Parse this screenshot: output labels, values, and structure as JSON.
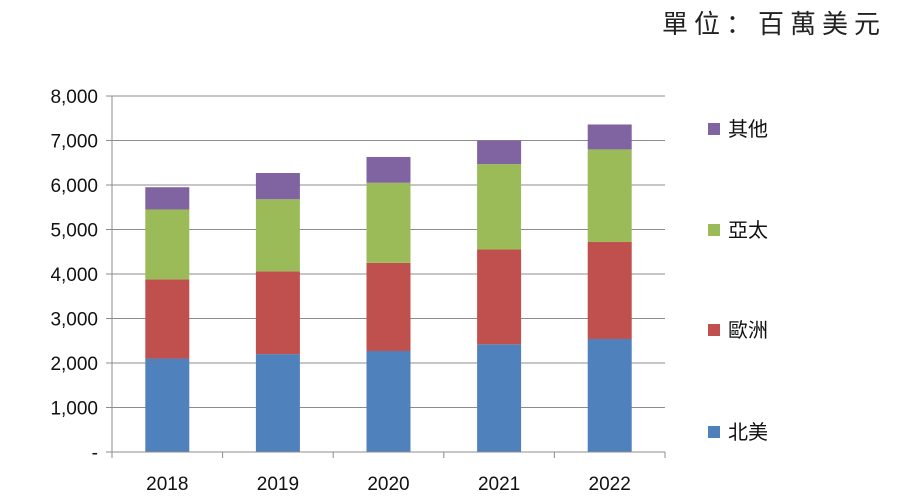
{
  "unit_label": "單位：百萬美元",
  "chart_data": {
    "type": "bar",
    "stacked": true,
    "title": "",
    "xlabel": "",
    "ylabel": "",
    "categories": [
      "2018",
      "2019",
      "2020",
      "2021",
      "2022"
    ],
    "ylim": [
      0,
      8000
    ],
    "yticks": [
      0,
      1000,
      2000,
      3000,
      4000,
      5000,
      6000,
      7000,
      8000
    ],
    "ytick_labels": [
      "-",
      "1,000",
      "2,000",
      "3,000",
      "4,000",
      "5,000",
      "6,000",
      "7,000",
      "8,000"
    ],
    "grid": true,
    "legend_position": "right",
    "series": [
      {
        "name": "北美",
        "color": "#4f81bd",
        "values": [
          2100,
          2200,
          2270,
          2420,
          2540
        ]
      },
      {
        "name": "歐洲",
        "color": "#c0504d",
        "values": [
          1780,
          1860,
          1980,
          2130,
          2180
        ]
      },
      {
        "name": "亞太",
        "color": "#9bbb59",
        "values": [
          1570,
          1620,
          1800,
          1920,
          2080
        ]
      },
      {
        "name": "其他",
        "color": "#8064a2",
        "values": [
          500,
          590,
          580,
          530,
          560
        ]
      }
    ]
  }
}
